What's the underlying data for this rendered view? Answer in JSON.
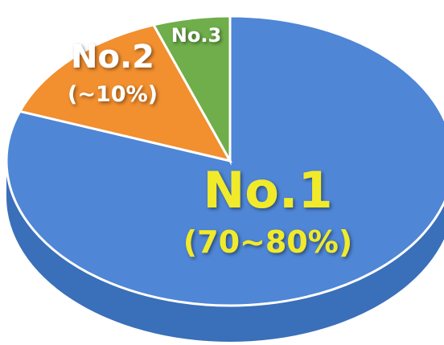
{
  "chart_data": {
    "type": "pie",
    "title": "",
    "slices": [
      {
        "label": "No.1",
        "sublabel": "(70~80%)",
        "value": 0.75
      },
      {
        "label": "No.2",
        "sublabel": "(~10%)",
        "value": 0.1
      },
      {
        "label": "No.3",
        "sublabel": "",
        "value": 0.05
      }
    ],
    "colors": {
      "no1_top": "#4f86d6",
      "no1_side": "#3a6fb9",
      "no2_top": "#f28f2f",
      "no2_side": "#b45b14",
      "no3_top": "#6fae4a",
      "no3_side": "#4c7e2c",
      "main_label": "#f1ea2a",
      "small_label": "#ffffff"
    }
  }
}
